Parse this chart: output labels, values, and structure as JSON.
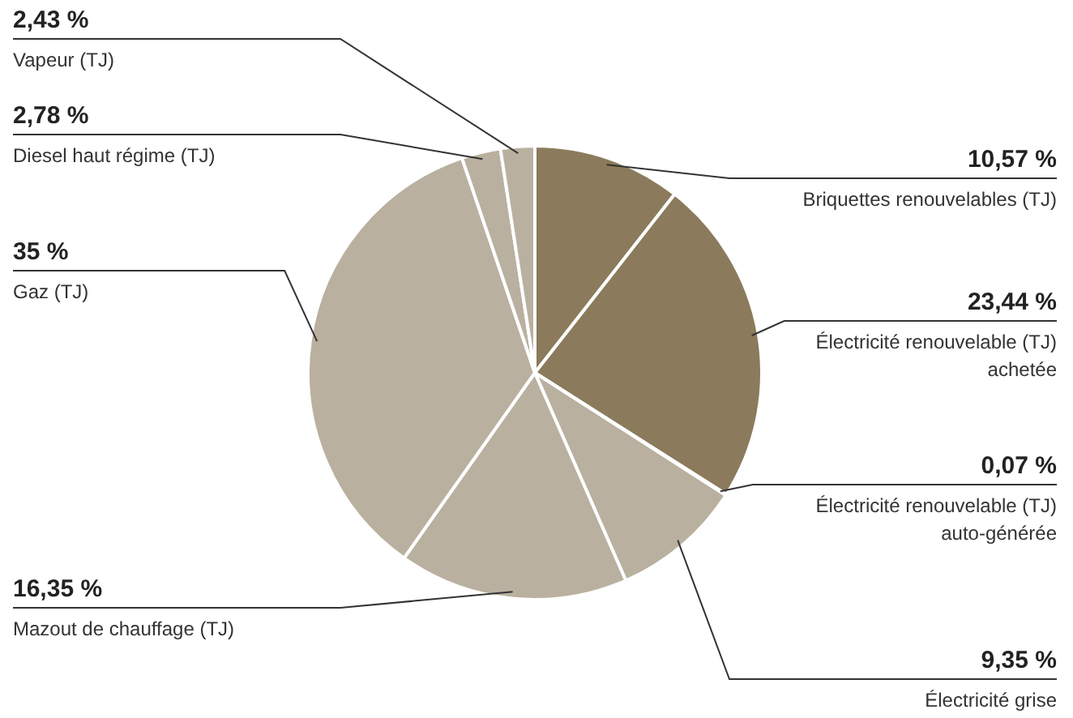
{
  "chart_data": {
    "type": "pie",
    "categories": [
      "Briquettes renouvelables (TJ)",
      "Électricité renouvelable (TJ)\nachetée",
      "Électricité renouvelable (TJ)\nauto-générée",
      "Électricité grise",
      "Mazout de chauffage (TJ)",
      "Gaz (TJ)",
      "Diesel haut régime (TJ)",
      "Vapeur (TJ)"
    ],
    "values": [
      10.57,
      23.44,
      0.07,
      9.35,
      16.35,
      35,
      2.78,
      2.43
    ],
    "value_labels": [
      "10,57 %",
      "23,44 %",
      "0,07 %",
      "9,35 %",
      "16,35 %",
      "35 %",
      "2,78 %",
      "2,43 %"
    ],
    "colors": [
      "#8b7b5c",
      "#8b7b5c",
      "#bab09f",
      "#bab09f",
      "#bab09f",
      "#bab09f",
      "#bab09f",
      "#bab09f"
    ],
    "legend": false
  }
}
